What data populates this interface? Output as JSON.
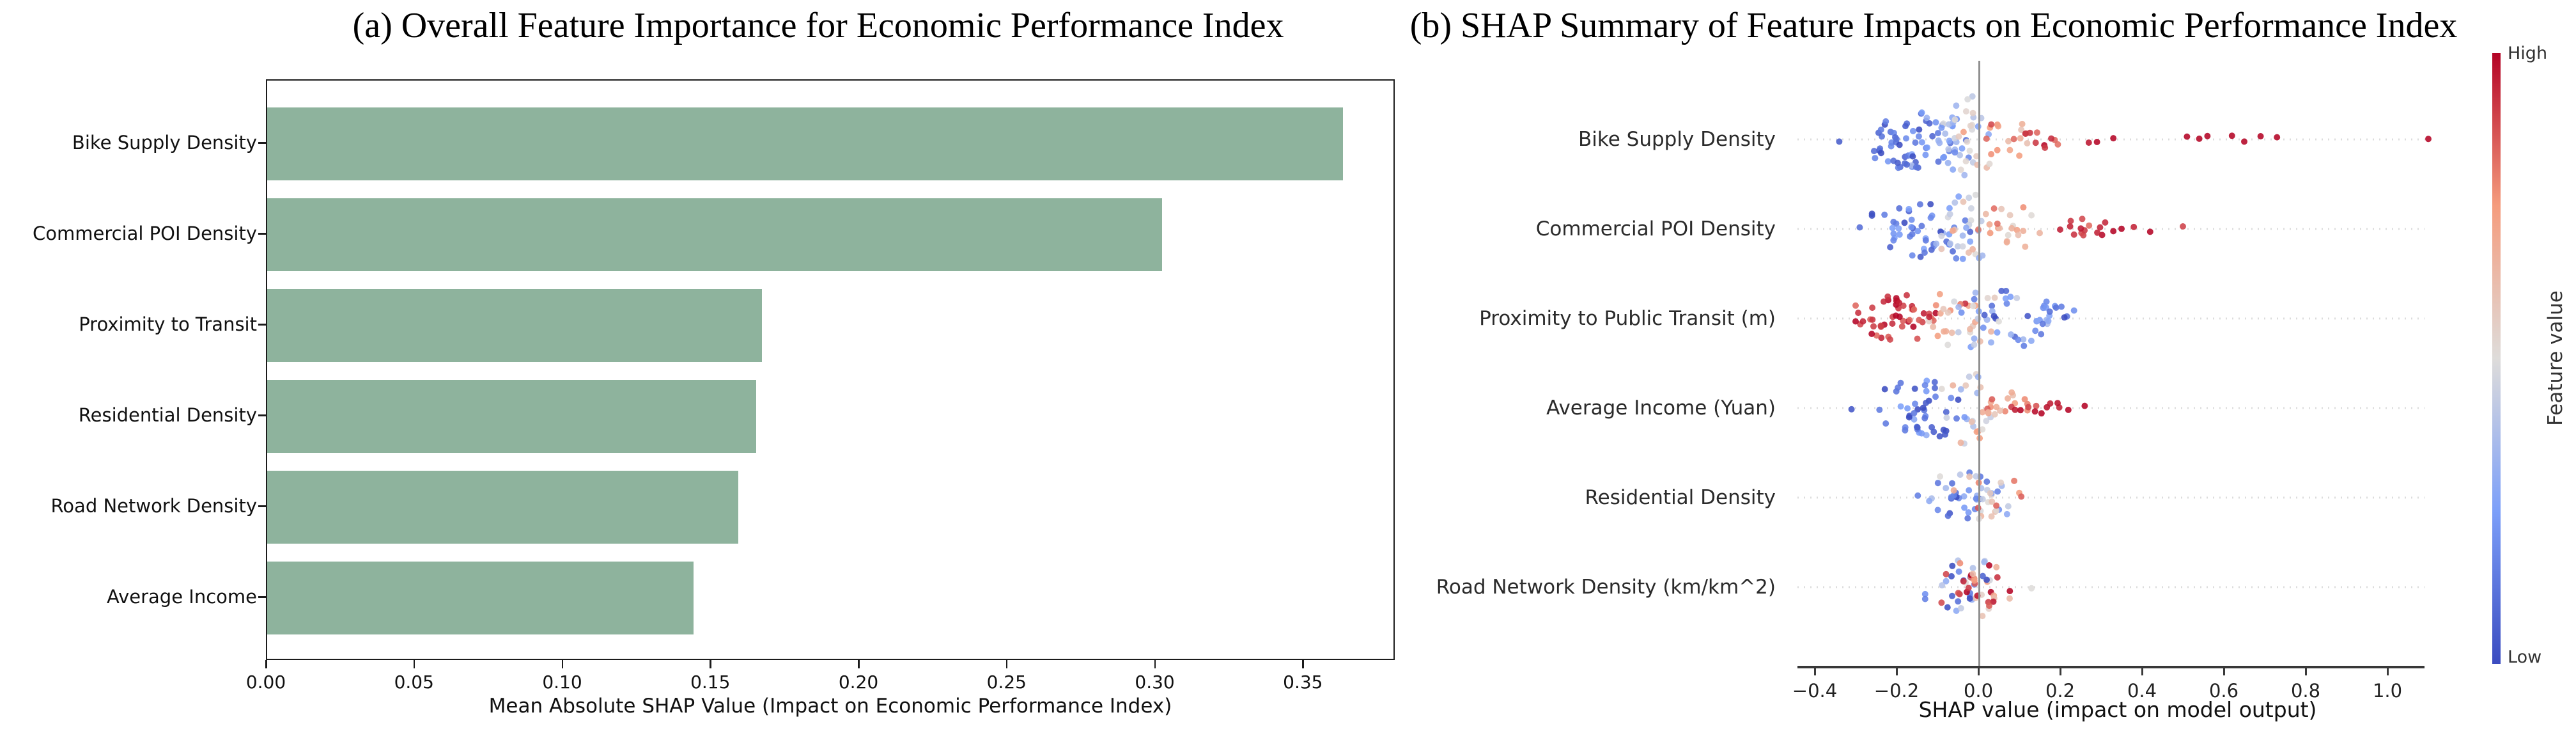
{
  "chart_data": [
    {
      "type": "bar",
      "panel": "a",
      "title": "(a) Overall Feature Importance for Economic Performance Index",
      "xlabel": "Mean Absolute SHAP Value (Impact on Economic Performance Index)",
      "orientation": "horizontal",
      "categories": [
        "Bike Supply Density",
        "Commercial POI Density",
        "Proximity to Transit",
        "Residential Density",
        "Road Network Density",
        "Average Income"
      ],
      "values": [
        0.363,
        0.302,
        0.167,
        0.165,
        0.159,
        0.144
      ],
      "bar_color": "#8eb39d",
      "xlim": [
        0,
        0.381
      ],
      "x_ticks": {
        "labels": [
          "0.00",
          "0.05",
          "0.10",
          "0.15",
          "0.20",
          "0.25",
          "0.30",
          "0.35"
        ],
        "values": [
          0.0,
          0.05,
          0.1,
          0.15,
          0.2,
          0.25,
          0.3,
          0.35
        ]
      },
      "grid": false
    },
    {
      "type": "beeswarm",
      "panel": "b",
      "title": "(b) SHAP Summary of Feature Impacts on Economic Performance Index",
      "xlabel": "SHAP value (impact on model output)",
      "xlim": [
        -0.46,
        1.16
      ],
      "zero_line": 0.0,
      "x_ticks": {
        "labels": [
          "−0.4",
          "−0.2",
          "0.0",
          "0.2",
          "0.4",
          "0.6",
          "0.8",
          "1.0"
        ],
        "values": [
          -0.4,
          -0.2,
          0.0,
          0.2,
          0.4,
          0.6,
          0.8,
          1.0
        ]
      },
      "colorbar": {
        "label": "Feature value",
        "high_label": "High",
        "low_label": "Low",
        "colormap": "coolwarm",
        "stops": [
          "#3b4cc0",
          "#7c9ff9",
          "#dedcda",
          "#f59c7d",
          "#b40426"
        ]
      },
      "zero_line_color": "#8f8f8f",
      "row_guide_color": "#dcdcdc",
      "features": [
        {
          "label": "Bike Supply Density",
          "clusters": [
            {
              "n": 55,
              "x": -0.17,
              "sd": 0.055,
              "clip": [
                -0.33,
                -0.03
              ],
              "c": 0.12,
              "csd": 0.08,
              "jitter": 46
            },
            {
              "n": 30,
              "x": -0.06,
              "sd": 0.035,
              "clip": [
                -0.15,
                0.0
              ],
              "c": 0.28,
              "csd": 0.1,
              "jitter": 58
            },
            {
              "n": 22,
              "x": -0.01,
              "sd": 0.025,
              "clip": [
                -0.06,
                0.045
              ],
              "c": 0.5,
              "csd": 0.1,
              "jitter": 68
            },
            {
              "n": 16,
              "x": 0.07,
              "sd": 0.04,
              "clip": [
                0.02,
                0.145
              ],
              "c": 0.72,
              "csd": 0.08,
              "jitter": 30
            },
            {
              "n": 9,
              "x": 0.17,
              "sd": 0.04,
              "clip": [
                0.115,
                0.24
              ],
              "c": 0.9,
              "csd": 0.06,
              "jitter": 14
            }
          ],
          "outliers": [
            [
              -0.34,
              0.05
            ],
            [
              0.27,
              0.97
            ],
            [
              0.29,
              1
            ],
            [
              0.33,
              1
            ],
            [
              0.51,
              1
            ],
            [
              0.54,
              1
            ],
            [
              0.56,
              1
            ],
            [
              0.62,
              1
            ],
            [
              0.65,
              1
            ],
            [
              0.69,
              1
            ],
            [
              0.73,
              1
            ],
            [
              1.1,
              1
            ]
          ]
        },
        {
          "label": "Commercial POI Density",
          "clusters": [
            {
              "n": 50,
              "x": -0.14,
              "sd": 0.05,
              "clip": [
                -0.26,
                -0.02
              ],
              "c": 0.15,
              "csd": 0.1,
              "jitter": 48
            },
            {
              "n": 28,
              "x": -0.03,
              "sd": 0.03,
              "clip": [
                -0.09,
                0.03
              ],
              "c": 0.42,
              "csd": 0.12,
              "jitter": 60
            },
            {
              "n": 22,
              "x": 0.06,
              "sd": 0.04,
              "clip": [
                0.0,
                0.15
              ],
              "c": 0.68,
              "csd": 0.1,
              "jitter": 42
            },
            {
              "n": 14,
              "x": 0.26,
              "sd": 0.03,
              "clip": [
                0.2,
                0.31
              ],
              "c": 0.93,
              "csd": 0.05,
              "jitter": 22
            }
          ],
          "outliers": [
            [
              -0.29,
              0.1
            ],
            [
              0.33,
              1
            ],
            [
              0.35,
              1
            ],
            [
              0.38,
              0.95
            ],
            [
              0.42,
              1
            ],
            [
              0.5,
              0.9
            ]
          ]
        },
        {
          "label": "Proximity to Public Transit (m)",
          "clusters": [
            {
              "n": 45,
              "x": -0.2,
              "sd": 0.05,
              "clip": [
                -0.3,
                -0.09
              ],
              "c": 0.92,
              "csd": 0.06,
              "jitter": 38
            },
            {
              "n": 20,
              "x": -0.09,
              "sd": 0.035,
              "clip": [
                -0.16,
                -0.02
              ],
              "c": 0.72,
              "csd": 0.12,
              "jitter": 46
            },
            {
              "n": 18,
              "x": -0.01,
              "sd": 0.03,
              "clip": [
                -0.07,
                0.04
              ],
              "c": 0.45,
              "csd": 0.15,
              "jitter": 52
            },
            {
              "n": 36,
              "x": 0.08,
              "sd": 0.05,
              "clip": [
                -0.01,
                0.19
              ],
              "c": 0.2,
              "csd": 0.12,
              "jitter": 46
            },
            {
              "n": 9,
              "x": 0.18,
              "sd": 0.03,
              "clip": [
                0.12,
                0.245
              ],
              "c": 0.14,
              "csd": 0.1,
              "jitter": 20
            }
          ],
          "outliers": [
            [
              -0.3,
              1
            ],
            [
              -0.12,
              0.95
            ],
            [
              0.05,
              0.5
            ]
          ]
        },
        {
          "label": "Average Income (Yuan)",
          "clusters": [
            {
              "n": 45,
              "x": -0.14,
              "sd": 0.055,
              "clip": [
                -0.27,
                -0.02
              ],
              "c": 0.15,
              "csd": 0.1,
              "jitter": 50
            },
            {
              "n": 25,
              "x": -0.03,
              "sd": 0.03,
              "clip": [
                -0.1,
                0.03
              ],
              "c": 0.45,
              "csd": 0.15,
              "jitter": 58
            },
            {
              "n": 16,
              "x": 0.06,
              "sd": 0.035,
              "clip": [
                0.01,
                0.12
              ],
              "c": 0.76,
              "csd": 0.1,
              "jitter": 26
            },
            {
              "n": 11,
              "x": 0.14,
              "sd": 0.035,
              "clip": [
                0.08,
                0.2
              ],
              "c": 0.95,
              "csd": 0.04,
              "jitter": 12
            }
          ],
          "outliers": [
            [
              -0.31,
              0.03
            ],
            [
              0.22,
              1
            ],
            [
              0.26,
              1
            ]
          ]
        },
        {
          "label": "Residential Density",
          "clusters": [
            {
              "n": 34,
              "x": -0.03,
              "sd": 0.045,
              "clip": [
                -0.13,
                0.06
              ],
              "c": 0.25,
              "csd": 0.15,
              "jitter": 42
            },
            {
              "n": 22,
              "x": 0.02,
              "sd": 0.04,
              "clip": [
                -0.06,
                0.1
              ],
              "c": 0.6,
              "csd": 0.2,
              "jitter": 38
            }
          ],
          "outliers": [
            [
              -0.148,
              0.15
            ],
            [
              -0.12,
              0.3
            ],
            [
              0.105,
              0.85
            ]
          ]
        },
        {
          "label": "Road Network Density (km/km^2)",
          "clusters": [
            {
              "n": 30,
              "x": -0.025,
              "sd": 0.045,
              "clip": [
                -0.13,
                0.07
              ],
              "c": 0.3,
              "csd": 0.2,
              "jitter": 50
            },
            {
              "n": 28,
              "x": 0.005,
              "sd": 0.04,
              "clip": [
                -0.09,
                0.1
              ],
              "c": 0.82,
              "csd": 0.15,
              "jitter": 48
            }
          ],
          "outliers": [
            [
              0.13,
              0.5
            ]
          ]
        }
      ]
    }
  ]
}
